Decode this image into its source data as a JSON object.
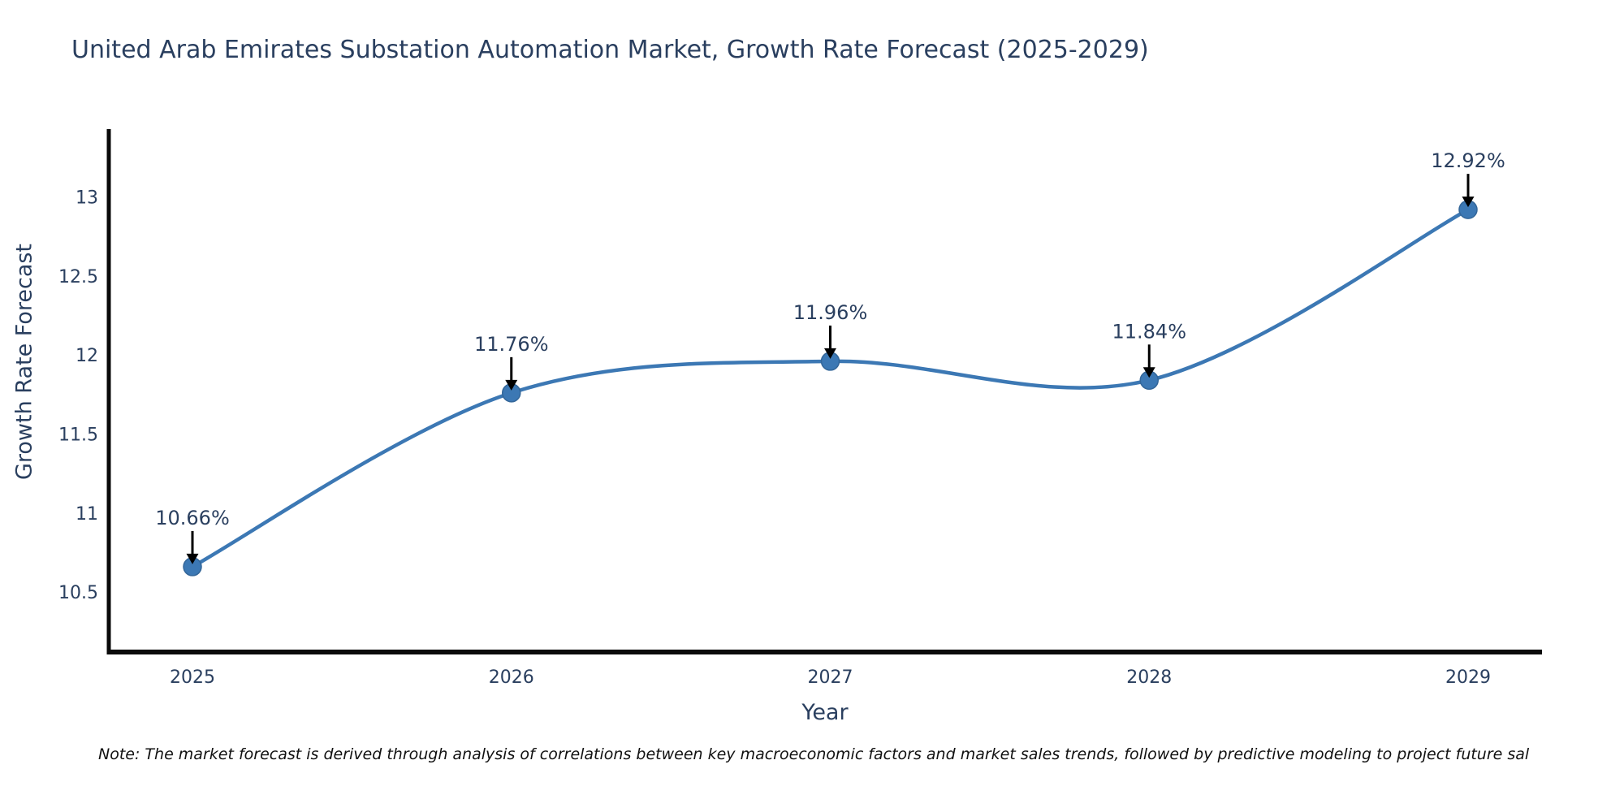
{
  "chart_data": {
    "type": "line",
    "curve": "spline",
    "title": "United Arab Emirates Substation Automation Market, Growth Rate Forecast (2025-2029)",
    "xlabel": "Year",
    "ylabel": "Growth Rate Forecast",
    "categories": [
      "2025",
      "2026",
      "2027",
      "2028",
      "2029"
    ],
    "values": [
      10.66,
      11.76,
      11.96,
      11.84,
      12.92
    ],
    "point_labels": [
      "10.66%",
      "11.76%",
      "11.96%",
      "11.84%",
      "12.92%"
    ],
    "yticks": [
      "10.5",
      "11",
      "11.5",
      "12",
      "12.5",
      "13"
    ],
    "ytick_values": [
      10.5,
      11,
      11.5,
      12,
      12.5,
      13
    ],
    "ylim": [
      10.12,
      13.43
    ],
    "grid": false,
    "legend": "none",
    "line_color": "#3c78b4",
    "marker_color": "#3c78b4",
    "marker_edge_color": "#336699",
    "arrow_color": "#000000",
    "axis_color": "#0a0a0a",
    "text_color": "#2a3f5f"
  },
  "note": "Note: The market forecast is derived through analysis of correlations between key macroeconomic factors and market sales trends, followed by predictive modeling to project future sal"
}
